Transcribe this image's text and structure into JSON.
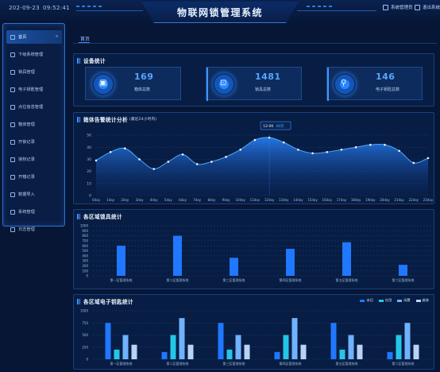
{
  "header": {
    "date": "202-09-23",
    "time": "09:52:41",
    "title": "物联网锁管理系统",
    "user_label": "系统管理员",
    "logout_label": "退出系统"
  },
  "sidebar": {
    "items": [
      {
        "label": "首页",
        "icon": "home-icon"
      },
      {
        "label": "下级系统管理",
        "icon": "chat-icon"
      },
      {
        "label": "锁具管理",
        "icon": "lock-icon"
      },
      {
        "label": "电子钥匙管理",
        "icon": "key-icon"
      },
      {
        "label": "点位信息管理",
        "icon": "location-icon"
      },
      {
        "label": "箱体管理",
        "icon": "box-icon"
      },
      {
        "label": "开锁记录",
        "icon": "folder-icon"
      },
      {
        "label": "授权记录",
        "icon": "shield-icon"
      },
      {
        "label": "开箱记录",
        "icon": "folder-open-icon"
      },
      {
        "label": "数据导入",
        "icon": "cloud-icon"
      },
      {
        "label": "系统管理",
        "icon": "monitor-icon"
      },
      {
        "label": "日志管理",
        "icon": "log-icon"
      }
    ]
  },
  "tab": {
    "label": "首页"
  },
  "device_stats": {
    "title": "设备统计",
    "cards": [
      {
        "value": "169",
        "label": "箱体总数",
        "icon": "box-icon"
      },
      {
        "value": "1481",
        "label": "锁具总数",
        "icon": "lock-icon"
      },
      {
        "value": "146",
        "label": "电子钥匙总数",
        "icon": "key-icon"
      }
    ]
  },
  "colors": {
    "accent": "#2a86ff",
    "panel": "#081d43",
    "background": "#061634"
  },
  "chart_data": [
    {
      "type": "area",
      "title": "箱体告警统计分析",
      "subtitle": "(最近24小时内)",
      "x": [
        "0day",
        "1day",
        "2day",
        "3day",
        "4day",
        "5day",
        "6day",
        "7day",
        "8day",
        "9day",
        "10day",
        "11day",
        "12day",
        "13day",
        "14day",
        "15day",
        "16day",
        "17day",
        "18day",
        "19day",
        "20day",
        "21day",
        "22day",
        "23day"
      ],
      "values": [
        29,
        36,
        39,
        30,
        22,
        28,
        34,
        26,
        28,
        32,
        38,
        46,
        48,
        44,
        38,
        35,
        36,
        38,
        40,
        42,
        42,
        37,
        27,
        31
      ],
      "ylim": [
        0,
        50
      ],
      "yticks": [
        0,
        10,
        20,
        30,
        40,
        50
      ],
      "tooltip": {
        "label": "12:00",
        "value": "48次"
      },
      "grid": true
    },
    {
      "type": "bar",
      "title": "各区域锁具统计",
      "categories": [
        "第一区管理系统",
        "第二区管理系统",
        "第三区管理系统",
        "第四区管理系统",
        "第五区管理系统",
        "第六区管理系统"
      ],
      "values": [
        600,
        800,
        360,
        540,
        670,
        220
      ],
      "ylim": [
        0,
        1000
      ],
      "yticks": [
        0,
        100,
        200,
        300,
        400,
        500,
        600,
        700,
        800,
        900,
        1000
      ],
      "grid": true
    },
    {
      "type": "bar",
      "title": "各区域电子钥匙统计",
      "categories": [
        "第一区管理系统",
        "第二区管理系统",
        "第三区管理系统",
        "第四区管理系统",
        "第五区管理系统",
        "第六区管理系统"
      ],
      "series": [
        {
          "name": "未归",
          "values": [
            750,
            150,
            750,
            150,
            750,
            150
          ],
          "color": "#1f78ff"
        },
        {
          "name": "在用",
          "values": [
            200,
            500,
            200,
            500,
            200,
            500
          ],
          "color": "#24c6e8"
        },
        {
          "name": "闲置",
          "values": [
            500,
            850,
            500,
            850,
            500,
            750
          ],
          "color": "#6fb2ff"
        },
        {
          "name": "维修",
          "values": [
            300,
            300,
            300,
            300,
            300,
            300
          ],
          "color": "#b8d4f5"
        }
      ],
      "ylim": [
        0,
        1000
      ],
      "yticks": [
        0,
        250,
        500,
        750,
        1000
      ],
      "legend": "top-right",
      "grid": true
    }
  ]
}
